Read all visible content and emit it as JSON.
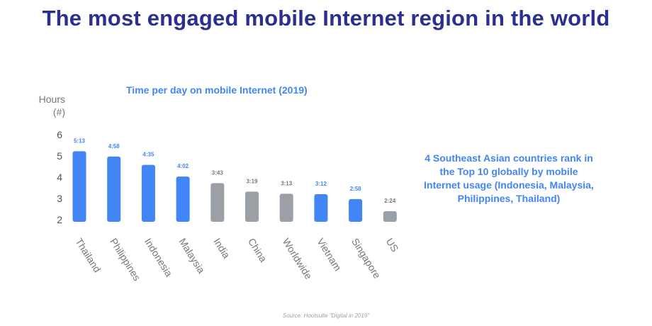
{
  "page": {
    "title": "The most engaged mobile Internet region in the world",
    "note": "4 Southeast Asian countries rank in the Top 10 globally by mobile Internet usage (Indonesia, Malaysia, Philippines, Thailand)",
    "source": "Source: Hootsuite \"Digital in 2019\""
  },
  "colors": {
    "title": "#2b2f8f",
    "highlight": "#4285f4",
    "other": "#9aa0a6"
  },
  "chart_data": {
    "type": "bar",
    "title": "Time per day on mobile Internet (2019)",
    "ylabel": "Hours (#)",
    "ylabel_lines": [
      "Hours",
      "(#)"
    ],
    "ylim": [
      2,
      6
    ],
    "yticks": [
      2,
      3,
      4,
      5,
      6
    ],
    "grid": false,
    "categories": [
      "Thailand",
      "Philippines",
      "Indonesia",
      "Malaysia",
      "India",
      "China",
      "Worldwide",
      "Vietnam",
      "Singapore",
      "US"
    ],
    "values": [
      5.22,
      4.97,
      4.58,
      4.03,
      3.72,
      3.32,
      3.22,
      3.2,
      2.97,
      2.4
    ],
    "value_labels": [
      "5:13",
      "4:58",
      "4:35",
      "4:02",
      "3:43",
      "3:19",
      "3:13",
      "3:12",
      "2:58",
      "2:24"
    ],
    "highlighted": [
      true,
      true,
      true,
      true,
      false,
      false,
      false,
      true,
      true,
      false
    ]
  }
}
